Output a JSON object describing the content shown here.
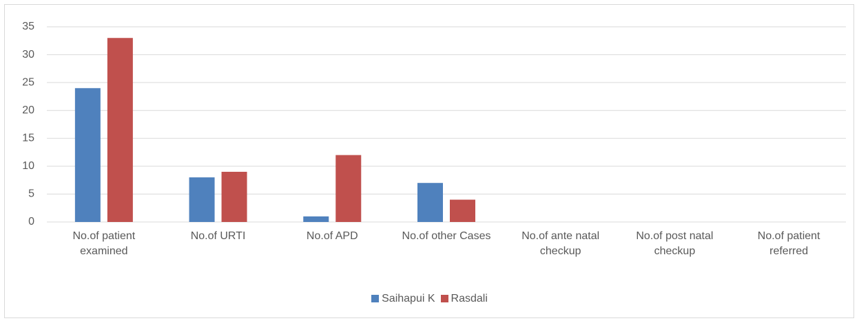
{
  "chart_data": {
    "type": "bar",
    "categories": [
      "No.of patient examined",
      "No.of URTI",
      "No.of APD",
      "No.of other Cases",
      "No.of ante natal checkup",
      "No.of post natal checkup",
      "No.of patient referred"
    ],
    "series": [
      {
        "name": "Saihapui K",
        "color": "#4f81bd",
        "values": [
          24,
          8,
          1,
          7,
          0,
          0,
          0
        ]
      },
      {
        "name": "Rasdali",
        "color": "#c0504d",
        "values": [
          33,
          9,
          12,
          4,
          0,
          0,
          0
        ]
      }
    ],
    "ylim": [
      0,
      35
    ],
    "yticks": [
      0,
      5,
      10,
      15,
      20,
      25,
      30,
      35
    ],
    "grid": true,
    "legend": "bottom"
  }
}
